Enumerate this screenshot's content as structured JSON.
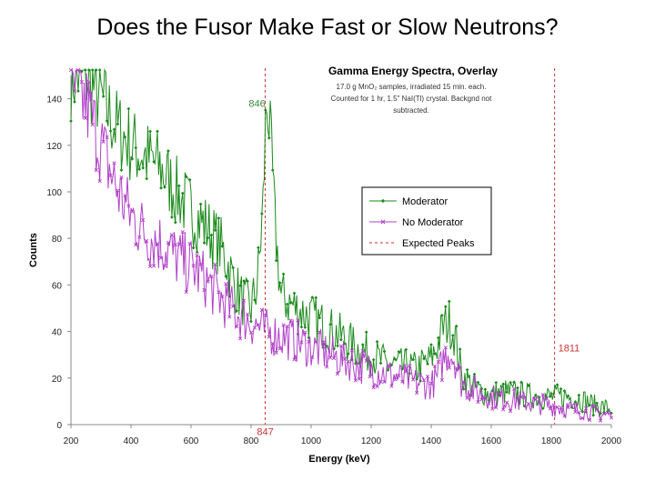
{
  "slide": {
    "title": "Does the Fusor Make Fast or Slow Neutrons?"
  },
  "chart_data": {
    "type": "line",
    "title": "Gamma Energy Spectra, Overlay",
    "notes": [
      "17.0 g MnO₂ samples, irradiated 15 min. each.",
      "Counted for 1 hr, 1.5\" NaI(Tl) crystal.  Backgnd not",
      "subtracted."
    ],
    "xlabel": "Energy (keV)",
    "ylabel": "Counts",
    "xlim": [
      200,
      2000
    ],
    "ylim": [
      0,
      150
    ],
    "xticks": [
      "200",
      "400",
      "600",
      "800",
      "1000",
      "1200",
      "1400",
      "1600",
      "1800",
      "2000"
    ],
    "yticks": [
      "0",
      "20",
      "40",
      "60",
      "80",
      "100",
      "120",
      "140"
    ],
    "legend_position": "center-right",
    "grid": false,
    "series": [
      {
        "name": "Moderator",
        "color": "#1a8a1a",
        "marker": "diamond",
        "x": [
          200,
          250,
          300,
          350,
          400,
          450,
          500,
          550,
          600,
          650,
          700,
          720,
          740,
          760,
          780,
          800,
          820,
          830,
          840,
          845,
          850,
          855,
          860,
          870,
          880,
          900,
          950,
          1000,
          1050,
          1100,
          1150,
          1200,
          1250,
          1300,
          1350,
          1400,
          1420,
          1440,
          1460,
          1480,
          1500,
          1550,
          1600,
          1650,
          1700,
          1750,
          1800,
          1850,
          1900,
          1950,
          2000
        ],
        "y": [
          150,
          150,
          140,
          128,
          120,
          115,
          110,
          100,
          92,
          85,
          76,
          70,
          62,
          56,
          52,
          50,
          60,
          75,
          95,
          115,
          135,
          140,
          130,
          110,
          85,
          55,
          50,
          46,
          42,
          38,
          33,
          30,
          26,
          25,
          24,
          28,
          34,
          42,
          44,
          38,
          22,
          15,
          13,
          14,
          13,
          12,
          12,
          12,
          11,
          8,
          7
        ]
      },
      {
        "name": "No Moderator",
        "color": "#b040c8",
        "marker": "star",
        "x": [
          200,
          250,
          300,
          350,
          400,
          450,
          500,
          550,
          600,
          650,
          700,
          750,
          800,
          850,
          900,
          950,
          1000,
          1050,
          1100,
          1150,
          1200,
          1250,
          1300,
          1350,
          1400,
          1420,
          1440,
          1460,
          1480,
          1500,
          1550,
          1600,
          1650,
          1700,
          1750,
          1800,
          1850,
          1900,
          1950,
          2000
        ],
        "y": [
          145,
          138,
          120,
          102,
          90,
          82,
          78,
          72,
          68,
          62,
          54,
          48,
          44,
          40,
          38,
          36,
          33,
          31,
          28,
          26,
          24,
          22,
          20,
          18,
          17,
          20,
          28,
          32,
          28,
          18,
          14,
          12,
          11,
          10,
          9,
          8,
          7,
          6,
          5,
          4
        ]
      },
      {
        "name": "Expected Peaks",
        "color": "#cc3333",
        "style": "dashed",
        "peaks": [
          847,
          1811
        ]
      }
    ],
    "annotations": [
      {
        "text": "846",
        "x": 820,
        "y": 138,
        "color": "#3a8a3a"
      },
      {
        "text": "847",
        "x": 847,
        "y": -3,
        "color": "#cc3333"
      },
      {
        "text": "1811",
        "x": 1811,
        "y": 33,
        "color": "#cc3333"
      }
    ]
  }
}
